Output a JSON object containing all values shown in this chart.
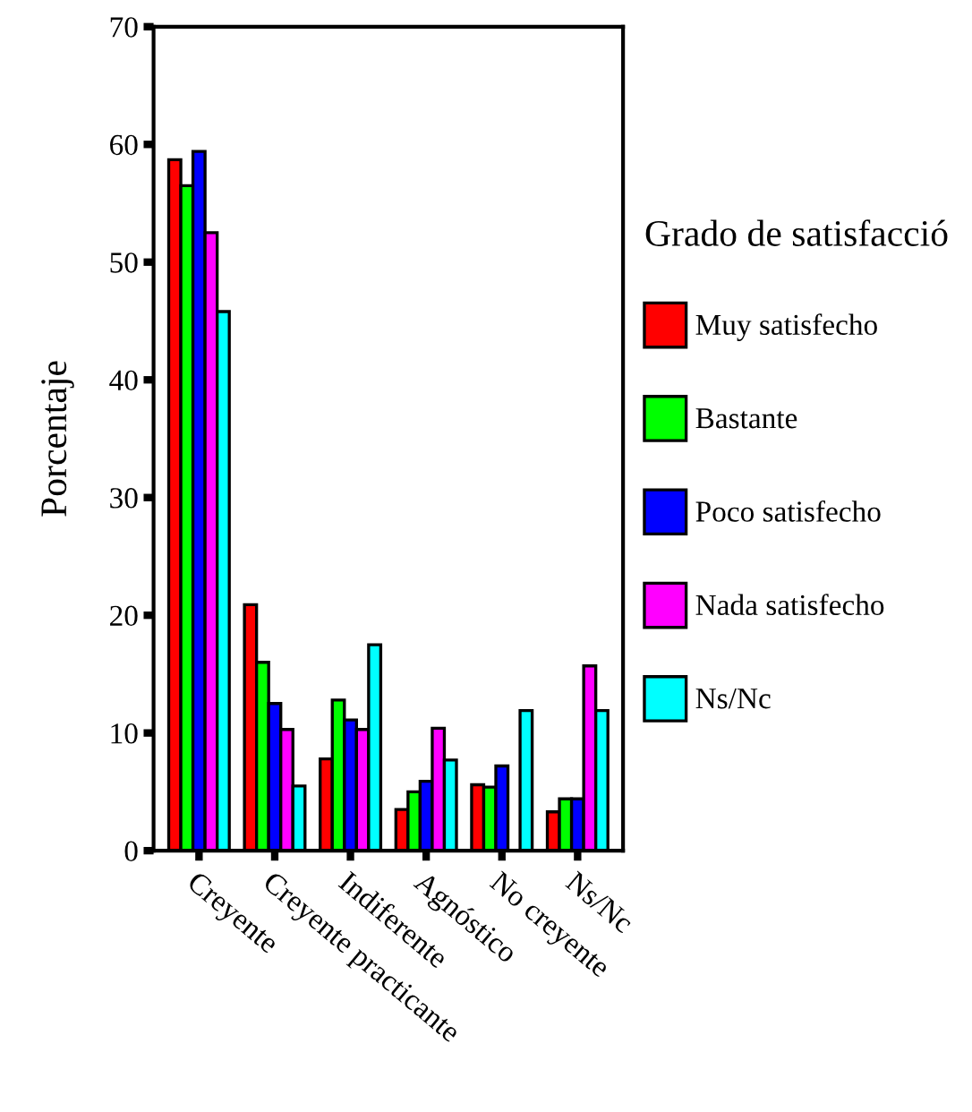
{
  "chart_data": {
    "type": "bar",
    "ylabel": "Porcentaje",
    "legend_title": "Grado de satisfacció",
    "categories": [
      "Creyente",
      "Creyente practicante",
      "Indiferente",
      "Agnóstico",
      "No creyente",
      "Ns/Nc"
    ],
    "series": [
      {
        "name": "Muy satisfecho",
        "color": "#ff0000",
        "values": [
          58.7,
          20.9,
          7.8,
          3.5,
          5.6,
          3.3
        ]
      },
      {
        "name": "Bastante",
        "color": "#00ff00",
        "values": [
          56.5,
          16.0,
          12.8,
          5.0,
          5.4,
          4.4
        ]
      },
      {
        "name": "Poco satisfecho",
        "color": "#0000ff",
        "values": [
          59.4,
          12.5,
          11.1,
          5.9,
          7.2,
          4.4
        ]
      },
      {
        "name": "Nada satisfecho",
        "color": "#ff00ff",
        "values": [
          52.5,
          10.3,
          10.3,
          10.4,
          null,
          15.7
        ]
      },
      {
        "name": "Ns/Nc",
        "color": "#00ffff",
        "values": [
          45.8,
          5.5,
          17.5,
          7.7,
          11.9,
          11.9
        ]
      }
    ],
    "ylim": [
      0,
      70
    ],
    "yticks": [
      0,
      10,
      20,
      30,
      40,
      50,
      60,
      70
    ],
    "grid": false,
    "legend": "right"
  }
}
